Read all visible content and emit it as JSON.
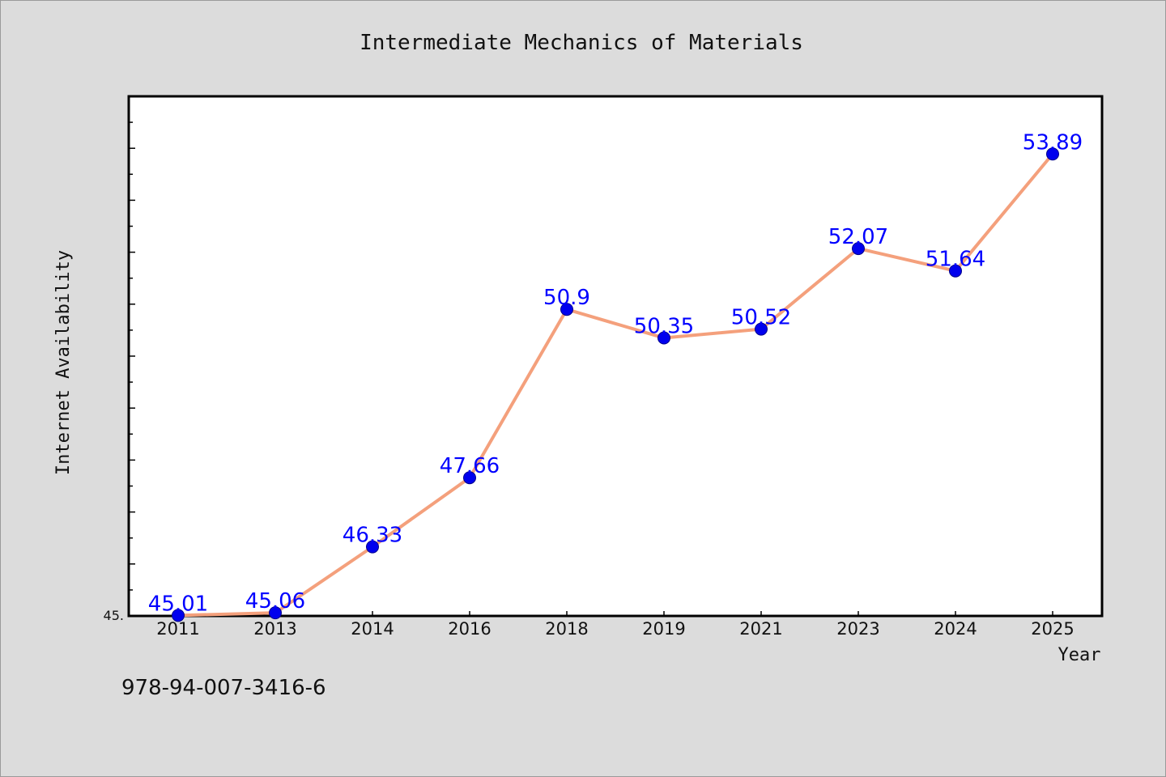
{
  "chart_data": {
    "type": "line",
    "title": "Intermediate Mechanics of Materials",
    "xlabel": "Year",
    "ylabel": "Internet Availability",
    "categories": [
      "2011",
      "2013",
      "2014",
      "2016",
      "2018",
      "2019",
      "2021",
      "2023",
      "2024",
      "2025"
    ],
    "series": [
      {
        "values": [
          45.01,
          45.06,
          46.33,
          47.66,
          50.9,
          50.35,
          50.52,
          52.07,
          51.64,
          53.89
        ]
      }
    ],
    "data_labels": [
      "45.01",
      "45.06",
      "46.33",
      "47.66",
      "50.9",
      "50.35",
      "50.52",
      "52.07",
      "51.64",
      "53.89"
    ],
    "y_tick_label": "45.",
    "ylim": [
      45.0,
      55.0
    ],
    "grid": false,
    "legend": "none",
    "line_color": "#f4a07c",
    "marker_color": "#0000ee",
    "label_color": "#0000ff"
  },
  "annotation": {
    "isbn": "978-94-007-3416-6"
  }
}
